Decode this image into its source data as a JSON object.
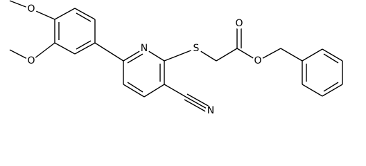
{
  "atoms": [
    {
      "label": "O"
    },
    {
      "label": "O"
    },
    {
      "label": "N"
    },
    {
      "label": "S"
    },
    {
      "label": "O"
    },
    {
      "label": "O"
    },
    {
      "label": "N"
    }
  ]
}
